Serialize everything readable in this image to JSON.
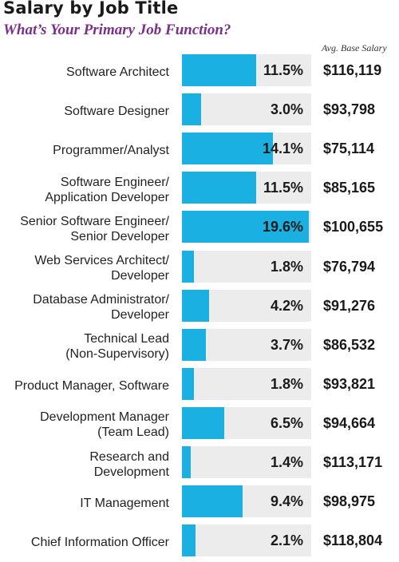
{
  "chart_data": {
    "type": "bar",
    "title": "Salary by Job Title",
    "subtitle": "What’s Your Primary Job Function?",
    "column_header": "Avg. Base Salary",
    "value_max": 20,
    "colors": {
      "bar": "#1ab0e2",
      "track": "#ececed",
      "subtitle": "#7b2f8a"
    },
    "rows": [
      {
        "label": [
          "Software Architect"
        ],
        "percent": 11.5,
        "percent_label": "11.5%",
        "salary": "$116,119"
      },
      {
        "label": [
          "Software Designer"
        ],
        "percent": 3.0,
        "percent_label": "3.0%",
        "salary": "$93,798"
      },
      {
        "label": [
          "Programmer/Analyst"
        ],
        "percent": 14.1,
        "percent_label": "14.1%",
        "salary": "$75,114"
      },
      {
        "label": [
          "Software Engineer/",
          "Application Developer"
        ],
        "percent": 11.5,
        "percent_label": "11.5%",
        "salary": "$85,165"
      },
      {
        "label": [
          "Senior Software Engineer/",
          "Senior Developer"
        ],
        "percent": 19.6,
        "percent_label": "19.6%",
        "salary": "$100,655"
      },
      {
        "label": [
          "Web Services Architect/",
          "Developer"
        ],
        "percent": 1.8,
        "percent_label": "1.8%",
        "salary": "$76,794"
      },
      {
        "label": [
          "Database Administrator/",
          "Developer"
        ],
        "percent": 4.2,
        "percent_label": "4.2%",
        "salary": "$91,276"
      },
      {
        "label": [
          "Technical Lead",
          "(Non-Supervisory)"
        ],
        "percent": 3.7,
        "percent_label": "3.7%",
        "salary": "$86,532"
      },
      {
        "label": [
          "Product Manager, Software"
        ],
        "percent": 1.8,
        "percent_label": "1.8%",
        "salary": "$93,821"
      },
      {
        "label": [
          "Development Manager",
          "(Team Lead)"
        ],
        "percent": 6.5,
        "percent_label": "6.5%",
        "salary": "$94,664"
      },
      {
        "label": [
          "Research and",
          "Development"
        ],
        "percent": 1.4,
        "percent_label": "1.4%",
        "salary": "$113,171"
      },
      {
        "label": [
          "IT Management"
        ],
        "percent": 9.4,
        "percent_label": "9.4%",
        "salary": "$98,975"
      },
      {
        "label": [
          "Chief Information Officer"
        ],
        "percent": 2.1,
        "percent_label": "2.1%",
        "salary": "$118,804"
      }
    ]
  }
}
